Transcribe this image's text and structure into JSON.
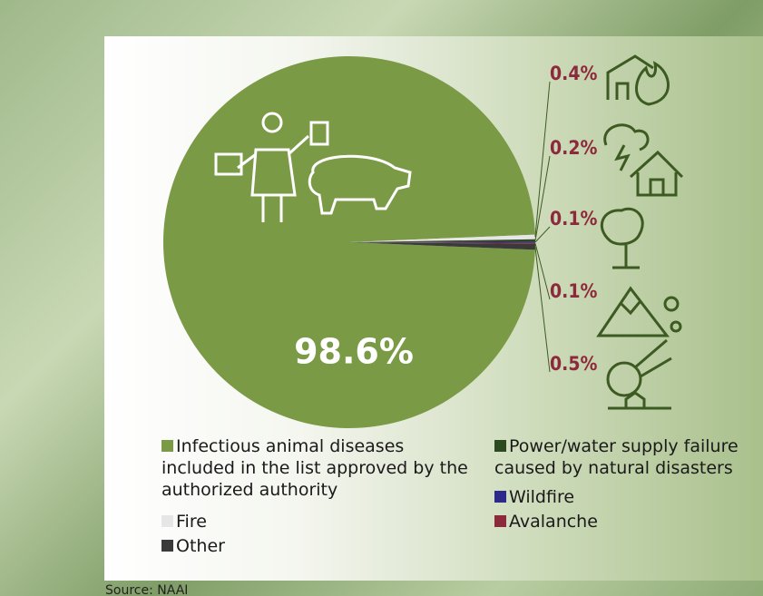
{
  "chart_data": {
    "type": "pie",
    "categories": [
      "Infectious animal diseases included in the list approved by the authorized authority",
      "Fire",
      "Power/water supply failure caused by natural disasters",
      "Wildfire",
      "Avalanche",
      "Other"
    ],
    "values": [
      98.6,
      0.4,
      0.2,
      0.1,
      0.1,
      0.5
    ],
    "value_labels": [
      "98.6%",
      "0.4%",
      "0.2%",
      "0.1%",
      "0.1%",
      "0.5%"
    ],
    "colors": [
      "#7a9a45",
      "#e6e6e6",
      "#2c4a1f",
      "#2d2a8c",
      "#8c2a3c",
      "#3a3a3a"
    ],
    "source": "Source: NAAI"
  }
}
